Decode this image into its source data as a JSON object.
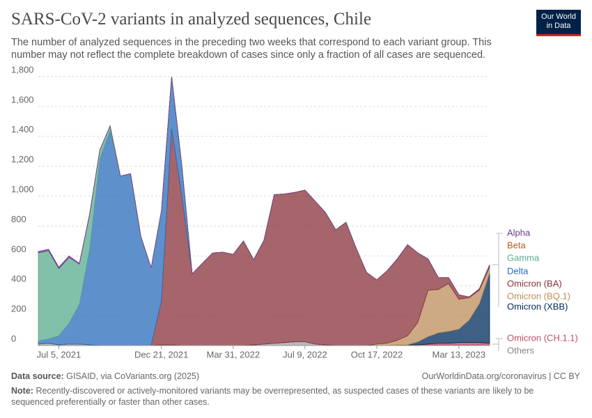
{
  "chart_data": {
    "type": "stacked-area",
    "title": "SARS-CoV-2 variants in analyzed sequences, Chile",
    "subtitle": "The number of analyzed sequences in the preceding two weeks that correspond to each variant group. This number may not reflect the complete breakdown of cases since only a fraction of all cases are sequenced.",
    "logo": [
      "Our World",
      "in Data"
    ],
    "source_label": "Data source:",
    "source": "GISAID, via CoVariants.org (2025)",
    "credit": "OurWorldinData.org/coronavirus | CC BY",
    "note_label": "Note:",
    "note": "Recently-discovered or actively-monitored variants may be overrepresented, as suspected cases of these variants are likely to be sequenced preferentially or faster than other cases.",
    "categories": [
      null,
      null,
      "Jul 5, 2021",
      null,
      null,
      null,
      null,
      null,
      null,
      null,
      null,
      null,
      "Dec 21, 2021",
      null,
      null,
      null,
      null,
      null,
      null,
      "Mar 31, 2022",
      null,
      null,
      null,
      null,
      null,
      null,
      "Jul 9, 2022",
      null,
      null,
      null,
      null,
      null,
      null,
      "Oct 17, 2022",
      null,
      null,
      null,
      null,
      null,
      null,
      null,
      "Mar 13, 2023",
      null,
      null,
      null
    ],
    "ylim": [
      0,
      1800
    ],
    "yticks": [
      0,
      200,
      400,
      600,
      800,
      {
        "value": 1000,
        "label": "1,000"
      },
      {
        "value": 1200,
        "label": "1,200"
      },
      {
        "value": 1400,
        "label": "1,400"
      },
      {
        "value": 1600,
        "label": "1,600"
      },
      {
        "value": 1800,
        "label": "1,800"
      }
    ],
    "grid": true,
    "series": [
      {
        "name": "Others",
        "color": "#a2a2a2",
        "values": [
          10,
          15,
          5,
          10,
          10,
          5,
          0,
          0,
          0,
          0,
          0,
          0,
          5,
          5,
          0,
          0,
          0,
          0,
          0,
          0,
          0,
          5,
          10,
          15,
          20,
          25,
          25,
          10,
          5,
          0,
          0,
          0,
          0,
          0,
          0,
          5,
          5,
          5,
          5,
          5,
          5,
          5,
          5,
          5,
          5
        ]
      },
      {
        "name": "Omicron (CH.1.1)",
        "color": "#c15065",
        "values": [
          0,
          0,
          0,
          0,
          0,
          0,
          0,
          0,
          0,
          0,
          0,
          0,
          0,
          0,
          0,
          0,
          0,
          0,
          0,
          0,
          0,
          0,
          0,
          0,
          0,
          0,
          0,
          0,
          0,
          0,
          0,
          0,
          0,
          0,
          0,
          0,
          0,
          0,
          5,
          10,
          10,
          15,
          15,
          15,
          10
        ]
      },
      {
        "name": "Omicron (XBB)",
        "color": "#00295b",
        "values": [
          0,
          0,
          0,
          0,
          0,
          0,
          0,
          0,
          0,
          0,
          0,
          0,
          0,
          0,
          0,
          0,
          0,
          0,
          0,
          0,
          0,
          0,
          0,
          0,
          0,
          0,
          0,
          0,
          0,
          0,
          0,
          0,
          0,
          0,
          0,
          0,
          0,
          20,
          50,
          70,
          80,
          90,
          150,
          260,
          470
        ]
      },
      {
        "name": "Omicron (BQ.1)",
        "color": "#bc8e5a",
        "values": [
          0,
          0,
          0,
          0,
          0,
          0,
          0,
          0,
          0,
          0,
          0,
          0,
          0,
          0,
          0,
          0,
          0,
          0,
          0,
          0,
          0,
          0,
          0,
          0,
          0,
          0,
          0,
          0,
          0,
          0,
          0,
          0,
          0,
          10,
          15,
          30,
          60,
          130,
          310,
          290,
          320,
          200,
          150,
          90,
          40
        ]
      },
      {
        "name": "Omicron (BA)",
        "color": "#883039",
        "values": [
          0,
          0,
          0,
          0,
          0,
          0,
          0,
          0,
          0,
          0,
          0,
          0,
          295,
          1445,
          1000,
          480,
          550,
          620,
          625,
          610,
          700,
          570,
          695,
          995,
          995,
          1000,
          1015,
          955,
          885,
          775,
          825,
          650,
          490,
          430,
          485,
          545,
          610,
          465,
          210,
          80,
          40,
          30,
          5,
          10,
          15
        ]
      },
      {
        "name": "Delta",
        "color": "#286bbb",
        "values": [
          20,
          30,
          60,
          140,
          265,
          640,
          1250,
          1440,
          1135,
          1150,
          730,
          520,
          600,
          350,
          200,
          0,
          0,
          0,
          0,
          0,
          0,
          0,
          0,
          0,
          0,
          0,
          0,
          0,
          0,
          0,
          0,
          0,
          0,
          0,
          0,
          0,
          0,
          0,
          0,
          0,
          0,
          0,
          0,
          0,
          0
        ]
      },
      {
        "name": "Gamma",
        "color": "#58ac8c",
        "values": [
          590,
          590,
          450,
          440,
          270,
          230,
          60,
          30,
          0,
          0,
          0,
          0,
          0,
          0,
          0,
          0,
          0,
          0,
          0,
          0,
          0,
          0,
          0,
          0,
          0,
          0,
          0,
          0,
          0,
          0,
          0,
          0,
          0,
          0,
          0,
          0,
          0,
          0,
          0,
          0,
          0,
          0,
          0,
          0,
          0
        ]
      },
      {
        "name": "Beta",
        "color": "#c05917",
        "values": [
          0,
          0,
          0,
          0,
          0,
          0,
          0,
          0,
          0,
          0,
          0,
          0,
          0,
          0,
          0,
          0,
          0,
          0,
          0,
          0,
          0,
          0,
          0,
          0,
          0,
          0,
          0,
          0,
          0,
          0,
          0,
          0,
          0,
          0,
          0,
          0,
          0,
          0,
          0,
          0,
          0,
          0,
          0,
          0,
          0
        ]
      },
      {
        "name": "Alpha",
        "color": "#6d3e91",
        "values": [
          10,
          10,
          10,
          10,
          5,
          5,
          0,
          0,
          0,
          0,
          0,
          0,
          0,
          0,
          0,
          0,
          0,
          0,
          0,
          0,
          0,
          0,
          0,
          0,
          0,
          0,
          0,
          0,
          0,
          0,
          0,
          0,
          0,
          0,
          0,
          0,
          0,
          0,
          0,
          0,
          0,
          0,
          0,
          0,
          0
        ]
      }
    ]
  }
}
